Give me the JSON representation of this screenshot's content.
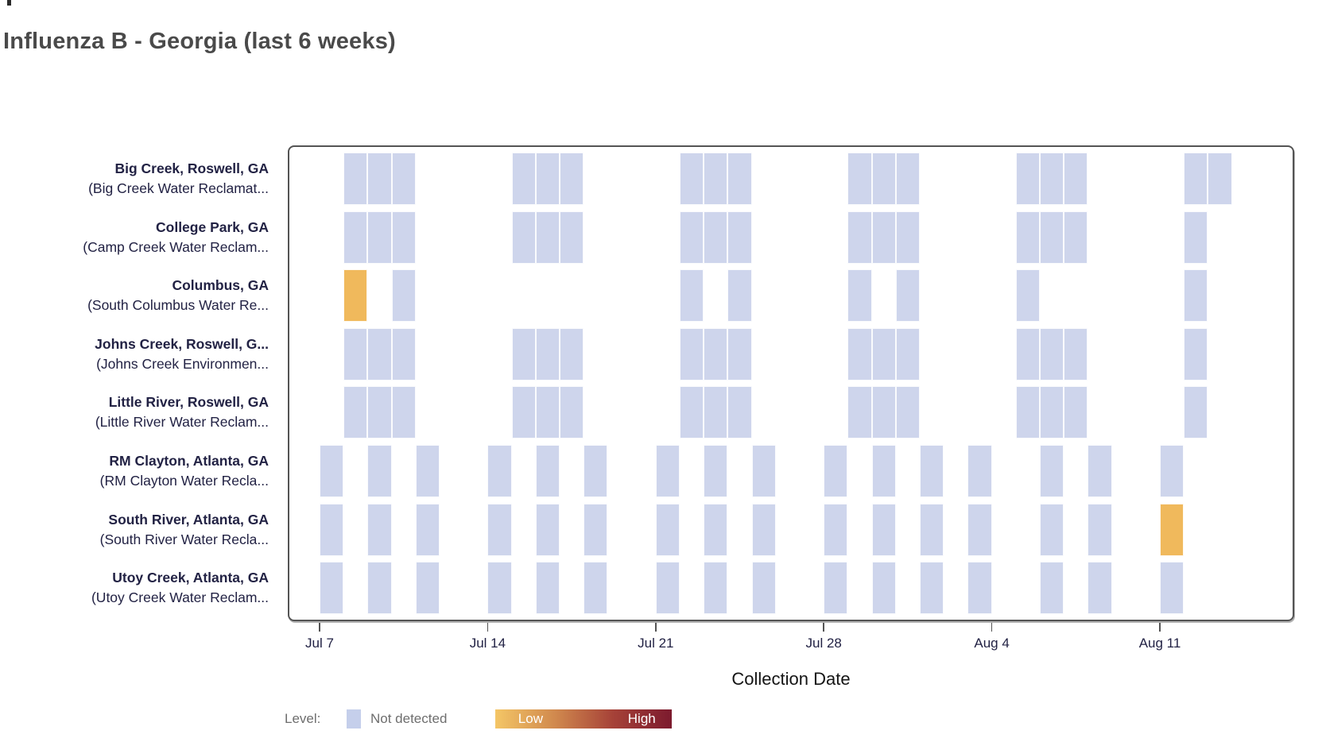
{
  "title": "Influenza B - Georgia (last 6 weeks)",
  "chart_data": {
    "type": "heatmap",
    "title": "Influenza B - Georgia (last 6 weeks)",
    "xlabel": "Collection Date",
    "x_ticks": [
      "Jul 7",
      "Jul 14",
      "Jul 21",
      "Jul 28",
      "Aug 4",
      "Aug 11"
    ],
    "legend": {
      "label": "Level:",
      "not_detected_label": "Not detected",
      "low_label": "Low",
      "high_label": "High"
    },
    "colors": {
      "not_detected": "#ced5ec",
      "low": "#f0b95c",
      "legend_swatch": "#c5cfeb",
      "gradient": [
        "#F4C666",
        "#D18A4E",
        "#A64238",
        "#7C1A2E"
      ]
    },
    "rows": [
      {
        "site": "Big Creek, Roswell, GA",
        "facility": "(Big Creek Water Reclamat...",
        "cells": [
          {
            "date": "Jul 8",
            "level": "not_detected"
          },
          {
            "date": "Jul 9",
            "level": "not_detected"
          },
          {
            "date": "Jul 10",
            "level": "not_detected"
          },
          {
            "date": "Jul 15",
            "level": "not_detected"
          },
          {
            "date": "Jul 16",
            "level": "not_detected"
          },
          {
            "date": "Jul 17",
            "level": "not_detected"
          },
          {
            "date": "Jul 22",
            "level": "not_detected"
          },
          {
            "date": "Jul 23",
            "level": "not_detected"
          },
          {
            "date": "Jul 24",
            "level": "not_detected"
          },
          {
            "date": "Jul 29",
            "level": "not_detected"
          },
          {
            "date": "Jul 30",
            "level": "not_detected"
          },
          {
            "date": "Jul 31",
            "level": "not_detected"
          },
          {
            "date": "Aug 5",
            "level": "not_detected"
          },
          {
            "date": "Aug 6",
            "level": "not_detected"
          },
          {
            "date": "Aug 7",
            "level": "not_detected"
          },
          {
            "date": "Aug 12",
            "level": "not_detected"
          },
          {
            "date": "Aug 13",
            "level": "not_detected"
          }
        ]
      },
      {
        "site": "College Park, GA",
        "facility": "(Camp Creek Water Reclam...",
        "cells": [
          {
            "date": "Jul 8",
            "level": "not_detected"
          },
          {
            "date": "Jul 9",
            "level": "not_detected"
          },
          {
            "date": "Jul 10",
            "level": "not_detected"
          },
          {
            "date": "Jul 15",
            "level": "not_detected"
          },
          {
            "date": "Jul 16",
            "level": "not_detected"
          },
          {
            "date": "Jul 17",
            "level": "not_detected"
          },
          {
            "date": "Jul 22",
            "level": "not_detected"
          },
          {
            "date": "Jul 23",
            "level": "not_detected"
          },
          {
            "date": "Jul 24",
            "level": "not_detected"
          },
          {
            "date": "Jul 29",
            "level": "not_detected"
          },
          {
            "date": "Jul 30",
            "level": "not_detected"
          },
          {
            "date": "Jul 31",
            "level": "not_detected"
          },
          {
            "date": "Aug 5",
            "level": "not_detected"
          },
          {
            "date": "Aug 6",
            "level": "not_detected"
          },
          {
            "date": "Aug 7",
            "level": "not_detected"
          },
          {
            "date": "Aug 12",
            "level": "not_detected"
          }
        ]
      },
      {
        "site": "Columbus, GA",
        "facility": "(South Columbus Water Re...",
        "cells": [
          {
            "date": "Jul 8",
            "level": "low"
          },
          {
            "date": "Jul 10",
            "level": "not_detected"
          },
          {
            "date": "Jul 22",
            "level": "not_detected"
          },
          {
            "date": "Jul 24",
            "level": "not_detected"
          },
          {
            "date": "Jul 29",
            "level": "not_detected"
          },
          {
            "date": "Jul 31",
            "level": "not_detected"
          },
          {
            "date": "Aug 5",
            "level": "not_detected"
          },
          {
            "date": "Aug 12",
            "level": "not_detected"
          }
        ]
      },
      {
        "site": "Johns Creek, Roswell, G...",
        "facility": "(Johns Creek Environmen...",
        "cells": [
          {
            "date": "Jul 8",
            "level": "not_detected"
          },
          {
            "date": "Jul 9",
            "level": "not_detected"
          },
          {
            "date": "Jul 10",
            "level": "not_detected"
          },
          {
            "date": "Jul 15",
            "level": "not_detected"
          },
          {
            "date": "Jul 16",
            "level": "not_detected"
          },
          {
            "date": "Jul 17",
            "level": "not_detected"
          },
          {
            "date": "Jul 22",
            "level": "not_detected"
          },
          {
            "date": "Jul 23",
            "level": "not_detected"
          },
          {
            "date": "Jul 24",
            "level": "not_detected"
          },
          {
            "date": "Jul 29",
            "level": "not_detected"
          },
          {
            "date": "Jul 30",
            "level": "not_detected"
          },
          {
            "date": "Jul 31",
            "level": "not_detected"
          },
          {
            "date": "Aug 5",
            "level": "not_detected"
          },
          {
            "date": "Aug 6",
            "level": "not_detected"
          },
          {
            "date": "Aug 7",
            "level": "not_detected"
          },
          {
            "date": "Aug 12",
            "level": "not_detected"
          }
        ]
      },
      {
        "site": "Little River, Roswell, GA",
        "facility": "(Little River Water Reclam...",
        "cells": [
          {
            "date": "Jul 8",
            "level": "not_detected"
          },
          {
            "date": "Jul 9",
            "level": "not_detected"
          },
          {
            "date": "Jul 10",
            "level": "not_detected"
          },
          {
            "date": "Jul 15",
            "level": "not_detected"
          },
          {
            "date": "Jul 16",
            "level": "not_detected"
          },
          {
            "date": "Jul 17",
            "level": "not_detected"
          },
          {
            "date": "Jul 22",
            "level": "not_detected"
          },
          {
            "date": "Jul 23",
            "level": "not_detected"
          },
          {
            "date": "Jul 24",
            "level": "not_detected"
          },
          {
            "date": "Jul 29",
            "level": "not_detected"
          },
          {
            "date": "Jul 30",
            "level": "not_detected"
          },
          {
            "date": "Jul 31",
            "level": "not_detected"
          },
          {
            "date": "Aug 5",
            "level": "not_detected"
          },
          {
            "date": "Aug 6",
            "level": "not_detected"
          },
          {
            "date": "Aug 7",
            "level": "not_detected"
          },
          {
            "date": "Aug 12",
            "level": "not_detected"
          }
        ]
      },
      {
        "site": "RM Clayton, Atlanta, GA",
        "facility": "(RM Clayton Water Recla...",
        "cells": [
          {
            "date": "Jul 7",
            "level": "not_detected"
          },
          {
            "date": "Jul 9",
            "level": "not_detected"
          },
          {
            "date": "Jul 11",
            "level": "not_detected"
          },
          {
            "date": "Jul 14",
            "level": "not_detected"
          },
          {
            "date": "Jul 16",
            "level": "not_detected"
          },
          {
            "date": "Jul 18",
            "level": "not_detected"
          },
          {
            "date": "Jul 21",
            "level": "not_detected"
          },
          {
            "date": "Jul 23",
            "level": "not_detected"
          },
          {
            "date": "Jul 25",
            "level": "not_detected"
          },
          {
            "date": "Jul 28",
            "level": "not_detected"
          },
          {
            "date": "Jul 30",
            "level": "not_detected"
          },
          {
            "date": "Aug 1",
            "level": "not_detected"
          },
          {
            "date": "Aug 3",
            "level": "not_detected"
          },
          {
            "date": "Aug 6",
            "level": "not_detected"
          },
          {
            "date": "Aug 8",
            "level": "not_detected"
          },
          {
            "date": "Aug 11",
            "level": "not_detected"
          }
        ]
      },
      {
        "site": "South River, Atlanta, GA",
        "facility": "(South River Water Recla...",
        "cells": [
          {
            "date": "Jul 7",
            "level": "not_detected"
          },
          {
            "date": "Jul 9",
            "level": "not_detected"
          },
          {
            "date": "Jul 11",
            "level": "not_detected"
          },
          {
            "date": "Jul 14",
            "level": "not_detected"
          },
          {
            "date": "Jul 16",
            "level": "not_detected"
          },
          {
            "date": "Jul 18",
            "level": "not_detected"
          },
          {
            "date": "Jul 21",
            "level": "not_detected"
          },
          {
            "date": "Jul 23",
            "level": "not_detected"
          },
          {
            "date": "Jul 25",
            "level": "not_detected"
          },
          {
            "date": "Jul 28",
            "level": "not_detected"
          },
          {
            "date": "Jul 30",
            "level": "not_detected"
          },
          {
            "date": "Aug 1",
            "level": "not_detected"
          },
          {
            "date": "Aug 3",
            "level": "not_detected"
          },
          {
            "date": "Aug 6",
            "level": "not_detected"
          },
          {
            "date": "Aug 8",
            "level": "not_detected"
          },
          {
            "date": "Aug 11",
            "level": "low"
          }
        ]
      },
      {
        "site": "Utoy Creek, Atlanta, GA",
        "facility": "(Utoy Creek Water Reclam...",
        "cells": [
          {
            "date": "Jul 7",
            "level": "not_detected"
          },
          {
            "date": "Jul 9",
            "level": "not_detected"
          },
          {
            "date": "Jul 11",
            "level": "not_detected"
          },
          {
            "date": "Jul 14",
            "level": "not_detected"
          },
          {
            "date": "Jul 16",
            "level": "not_detected"
          },
          {
            "date": "Jul 18",
            "level": "not_detected"
          },
          {
            "date": "Jul 21",
            "level": "not_detected"
          },
          {
            "date": "Jul 23",
            "level": "not_detected"
          },
          {
            "date": "Jul 25",
            "level": "not_detected"
          },
          {
            "date": "Jul 28",
            "level": "not_detected"
          },
          {
            "date": "Jul 30",
            "level": "not_detected"
          },
          {
            "date": "Aug 1",
            "level": "not_detected"
          },
          {
            "date": "Aug 3",
            "level": "not_detected"
          },
          {
            "date": "Aug 6",
            "level": "not_detected"
          },
          {
            "date": "Aug 8",
            "level": "not_detected"
          },
          {
            "date": "Aug 11",
            "level": "not_detected"
          }
        ]
      }
    ]
  }
}
